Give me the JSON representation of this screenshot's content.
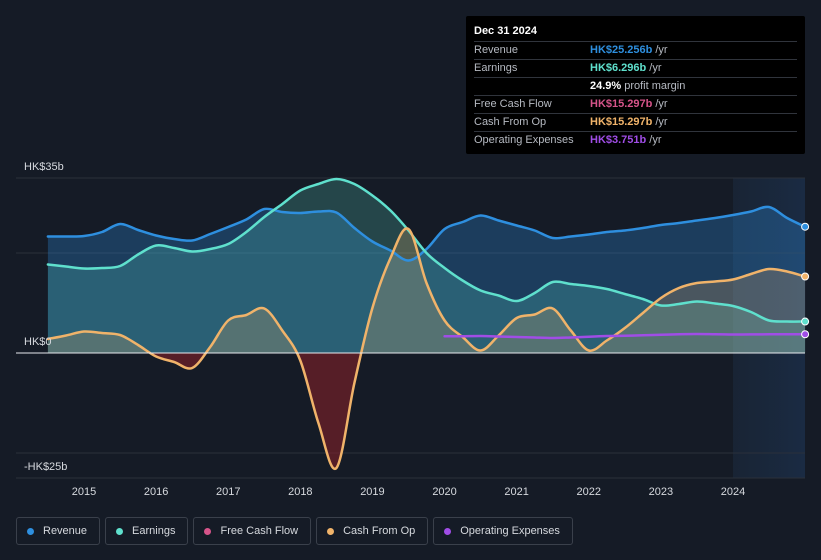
{
  "chart_data": {
    "type": "area",
    "title": "",
    "currency_label": "HK$",
    "x": [
      2014.5,
      2014.75,
      2015,
      2015.25,
      2015.5,
      2015.75,
      2016,
      2016.25,
      2016.5,
      2016.75,
      2017,
      2017.25,
      2017.5,
      2017.75,
      2018,
      2018.25,
      2018.5,
      2018.75,
      2019,
      2019.25,
      2019.5,
      2019.75,
      2020,
      2020.25,
      2020.5,
      2020.75,
      2021,
      2021.25,
      2021.5,
      2021.75,
      2022,
      2022.25,
      2022.5,
      2022.75,
      2023,
      2023.25,
      2023.5,
      2023.75,
      2024,
      2024.25,
      2024.5,
      2024.75,
      2025
    ],
    "series": [
      {
        "name": "Revenue",
        "color": "#2e8fdf",
        "values": [
          23.3,
          23.3,
          23.4,
          24.2,
          25.8,
          24.6,
          23.5,
          22.8,
          22.5,
          23.8,
          25.2,
          26.7,
          28.8,
          28.2,
          28.0,
          28.3,
          28.1,
          25.0,
          22.3,
          20.5,
          18.5,
          20.8,
          24.8,
          26.2,
          27.5,
          26.5,
          25.5,
          24.5,
          23.0,
          23.3,
          23.7,
          24.2,
          24.5,
          25.0,
          25.6,
          26.0,
          26.5,
          27.0,
          27.6,
          28.3,
          29.2,
          27.0,
          25.256
        ]
      },
      {
        "name": "Earnings",
        "color": "#5fe0cd",
        "values": [
          17.7,
          17.3,
          16.9,
          17.0,
          17.4,
          19.7,
          21.5,
          21.0,
          20.3,
          20.8,
          21.8,
          24.2,
          27.2,
          29.8,
          32.5,
          33.8,
          34.8,
          33.8,
          31.5,
          28.5,
          24.5,
          20.0,
          17.0,
          14.5,
          12.5,
          11.5,
          10.4,
          12.0,
          14.2,
          13.8,
          13.4,
          12.8,
          11.8,
          10.8,
          9.5,
          9.8,
          10.3,
          9.9,
          9.4,
          8.2,
          6.5,
          6.3,
          6.296
        ]
      },
      {
        "name": "Cash From Op",
        "color": "#f0b36a",
        "values": [
          2.8,
          3.5,
          4.3,
          4.0,
          3.6,
          1.6,
          -0.7,
          -1.8,
          -3.0,
          1.2,
          6.5,
          7.6,
          8.9,
          4.5,
          -1.5,
          -14.0,
          -23.0,
          -6.0,
          9.0,
          19.0,
          24.8,
          14.0,
          6.5,
          3.2,
          0.5,
          3.5,
          7.0,
          7.7,
          8.9,
          4.5,
          0.5,
          2.5,
          5.0,
          8.0,
          11.0,
          13.0,
          14.0,
          14.3,
          14.7,
          15.8,
          16.8,
          16.3,
          15.297
        ]
      },
      {
        "name": "Operating Expenses",
        "color": "#a04de6",
        "start_index": 22,
        "values": [
          null,
          null,
          null,
          null,
          null,
          null,
          null,
          null,
          null,
          null,
          null,
          null,
          null,
          null,
          null,
          null,
          null,
          null,
          null,
          null,
          null,
          null,
          3.35,
          3.35,
          3.4,
          3.3,
          3.2,
          3.1,
          3.0,
          3.1,
          3.25,
          3.4,
          3.45,
          3.55,
          3.65,
          3.75,
          3.8,
          3.75,
          3.7,
          3.72,
          3.74,
          3.75,
          3.751
        ]
      }
    ],
    "xlim": [
      2014.0,
      2025.0
    ],
    "ylim": [
      -25,
      35
    ],
    "y_ticks": [
      {
        "value": 35,
        "label": "HK$35b"
      },
      {
        "value": 0,
        "label": "HK$0"
      },
      {
        "value": -25,
        "label": "-HK$25b"
      }
    ],
    "x_ticks": [
      {
        "value": 2015,
        "label": "2015"
      },
      {
        "value": 2016,
        "label": "2016"
      },
      {
        "value": 2017,
        "label": "2017"
      },
      {
        "value": 2018,
        "label": "2018"
      },
      {
        "value": 2019,
        "label": "2019"
      },
      {
        "value": 2020,
        "label": "2020"
      },
      {
        "value": 2021,
        "label": "2021"
      },
      {
        "value": 2022,
        "label": "2022"
      },
      {
        "value": 2023,
        "label": "2023"
      },
      {
        "value": 2024,
        "label": "2024"
      }
    ],
    "highlight_start": 2024.0,
    "gridlines": [
      35,
      20,
      0,
      -20
    ]
  },
  "tooltip": {
    "date": "Dec 31 2024",
    "rows": [
      {
        "label": "Revenue",
        "value": "HK$25.256b",
        "unit": "/yr",
        "color": "#2e8fdf"
      },
      {
        "label": "Earnings",
        "value": "HK$6.296b",
        "unit": "/yr",
        "color": "#5fe0cd"
      },
      {
        "label": "",
        "value": "24.9%",
        "unit": "profit margin",
        "color": "#ffffff"
      },
      {
        "label": "Free Cash Flow",
        "value": "HK$15.297b",
        "unit": "/yr",
        "color": "#d6548a"
      },
      {
        "label": "Cash From Op",
        "value": "HK$15.297b",
        "unit": "/yr",
        "color": "#f0b36a"
      },
      {
        "label": "Operating Expenses",
        "value": "HK$3.751b",
        "unit": "/yr",
        "color": "#a04de6"
      }
    ]
  },
  "legend": [
    {
      "label": "Revenue",
      "color": "#2e8fdf"
    },
    {
      "label": "Earnings",
      "color": "#5fe0cd"
    },
    {
      "label": "Free Cash Flow",
      "color": "#d6548a"
    },
    {
      "label": "Cash From Op",
      "color": "#f0b36a"
    },
    {
      "label": "Operating Expenses",
      "color": "#a04de6"
    }
  ]
}
